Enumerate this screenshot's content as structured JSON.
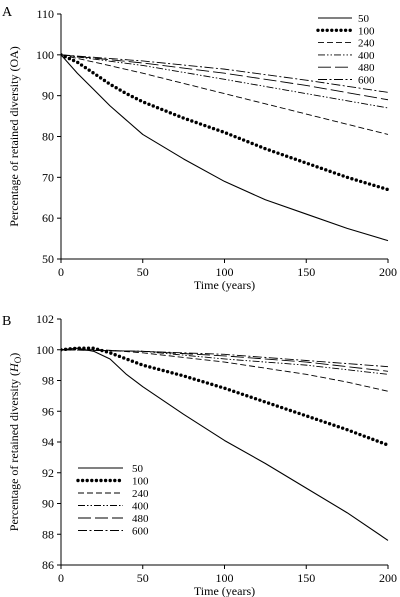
{
  "chart_data": [
    {
      "type": "line",
      "panel_label": "A",
      "xlabel": "Time (years)",
      "ylabel": "Percentage of retained diversity (OA)",
      "ylabel_italic": "",
      "ylabel_sub": "",
      "ylabel_tail": "",
      "xlim": [
        0,
        200
      ],
      "ylim": [
        50,
        110
      ],
      "xticks": [
        0,
        50,
        100,
        150,
        200
      ],
      "yticks": [
        50,
        60,
        70,
        80,
        90,
        100,
        110
      ],
      "legend_position": "top-right",
      "grid": false,
      "series": [
        {
          "name": "50",
          "style": "solid",
          "x": [
            0,
            10,
            20,
            30,
            40,
            50,
            75,
            100,
            125,
            150,
            175,
            200
          ],
          "y": [
            100,
            95.5,
            91.5,
            87.5,
            84,
            80.5,
            74.5,
            69,
            64.5,
            61,
            57.5,
            54.5
          ]
        },
        {
          "name": "100",
          "style": "dotted-heavy",
          "x": [
            0,
            10,
            20,
            30,
            40,
            50,
            75,
            100,
            125,
            150,
            175,
            200
          ],
          "y": [
            100,
            98.2,
            95.5,
            92.8,
            90.5,
            88.5,
            84.5,
            81,
            77,
            73.5,
            70,
            67
          ]
        },
        {
          "name": "240",
          "style": "short-dash",
          "x": [
            0,
            25,
            50,
            75,
            100,
            125,
            150,
            175,
            200
          ],
          "y": [
            100,
            97.8,
            95.5,
            93,
            90.5,
            88,
            85.5,
            83,
            80.5
          ]
        },
        {
          "name": "400",
          "style": "dash-dot-dot",
          "x": [
            0,
            50,
            100,
            150,
            200
          ],
          "y": [
            100,
            97.4,
            94,
            90.5,
            87
          ]
        },
        {
          "name": "480",
          "style": "long-dash",
          "x": [
            0,
            50,
            100,
            150,
            200
          ],
          "y": [
            100,
            98,
            95.5,
            92.5,
            89
          ]
        },
        {
          "name": "600",
          "style": "dash-dot",
          "x": [
            0,
            50,
            100,
            150,
            200
          ],
          "y": [
            100,
            98.5,
            96.5,
            93.8,
            90.8
          ]
        }
      ]
    },
    {
      "type": "line",
      "panel_label": "B",
      "xlabel": "Time (years)",
      "ylabel": "Percentage of retained diversity (",
      "ylabel_italic": "H",
      "ylabel_sub": "O",
      "ylabel_tail": ")",
      "xlim": [
        0,
        200
      ],
      "ylim": [
        86,
        102
      ],
      "xticks": [
        0,
        50,
        100,
        150,
        200
      ],
      "yticks": [
        86,
        88,
        90,
        92,
        94,
        96,
        98,
        100,
        102
      ],
      "legend_position": "bottom-left",
      "grid": false,
      "series": [
        {
          "name": "50",
          "style": "solid",
          "x": [
            0,
            10,
            20,
            30,
            40,
            50,
            75,
            100,
            125,
            150,
            175,
            200
          ],
          "y": [
            100,
            100.1,
            99.9,
            99.4,
            98.4,
            97.6,
            95.8,
            94.1,
            92.6,
            91,
            89.4,
            87.6
          ]
        },
        {
          "name": "100",
          "style": "dotted-heavy",
          "x": [
            0,
            10,
            20,
            30,
            40,
            50,
            75,
            100,
            125,
            150,
            175,
            200
          ],
          "y": [
            100,
            100.1,
            100.1,
            99.8,
            99.4,
            99,
            98.3,
            97.5,
            96.6,
            95.7,
            94.8,
            93.8
          ]
        },
        {
          "name": "240",
          "style": "short-dash",
          "x": [
            0,
            25,
            50,
            75,
            100,
            125,
            150,
            175,
            200
          ],
          "y": [
            100,
            100,
            99.8,
            99.5,
            99.2,
            98.8,
            98.4,
            97.9,
            97.3
          ]
        },
        {
          "name": "400",
          "style": "dash-dot-dot",
          "x": [
            0,
            50,
            100,
            150,
            200
          ],
          "y": [
            100,
            99.9,
            99.4,
            99,
            98.4
          ]
        },
        {
          "name": "480",
          "style": "long-dash",
          "x": [
            0,
            50,
            100,
            150,
            200
          ],
          "y": [
            100,
            99.9,
            99.6,
            99.2,
            98.6
          ]
        },
        {
          "name": "600",
          "style": "dash-dot",
          "x": [
            0,
            50,
            100,
            150,
            200
          ],
          "y": [
            100,
            99.9,
            99.7,
            99.3,
            98.9
          ]
        }
      ]
    }
  ]
}
